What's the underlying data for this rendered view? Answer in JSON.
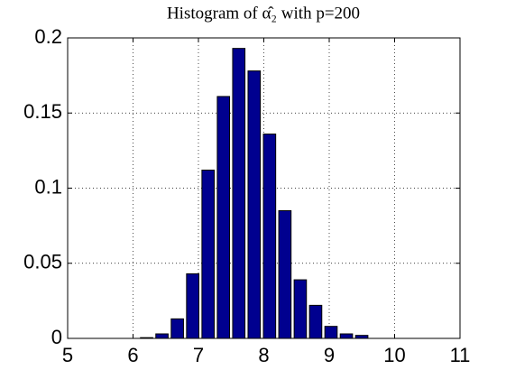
{
  "chart_data": {
    "type": "histogram",
    "title": "Histogram of α̂₂ with p=200",
    "bins": [
      6.09,
      6.325,
      6.56,
      6.795,
      7.03,
      7.265,
      7.5,
      7.735,
      7.97,
      8.205,
      8.44,
      8.675,
      8.91,
      9.145,
      9.38,
      9.615
    ],
    "values": [
      0.0005,
      0.003,
      0.013,
      0.043,
      0.112,
      0.161,
      0.193,
      0.178,
      0.136,
      0.085,
      0.039,
      0.022,
      0.008,
      0.003,
      0.002
    ],
    "color": "#00008f",
    "xlim": [
      5,
      11
    ],
    "xticks": [
      5,
      6,
      7,
      8,
      9,
      10,
      11
    ],
    "ylim": [
      0,
      0.2
    ],
    "yticks": [
      0,
      0.05,
      0.1,
      0.15,
      0.2
    ],
    "grid": true
  }
}
